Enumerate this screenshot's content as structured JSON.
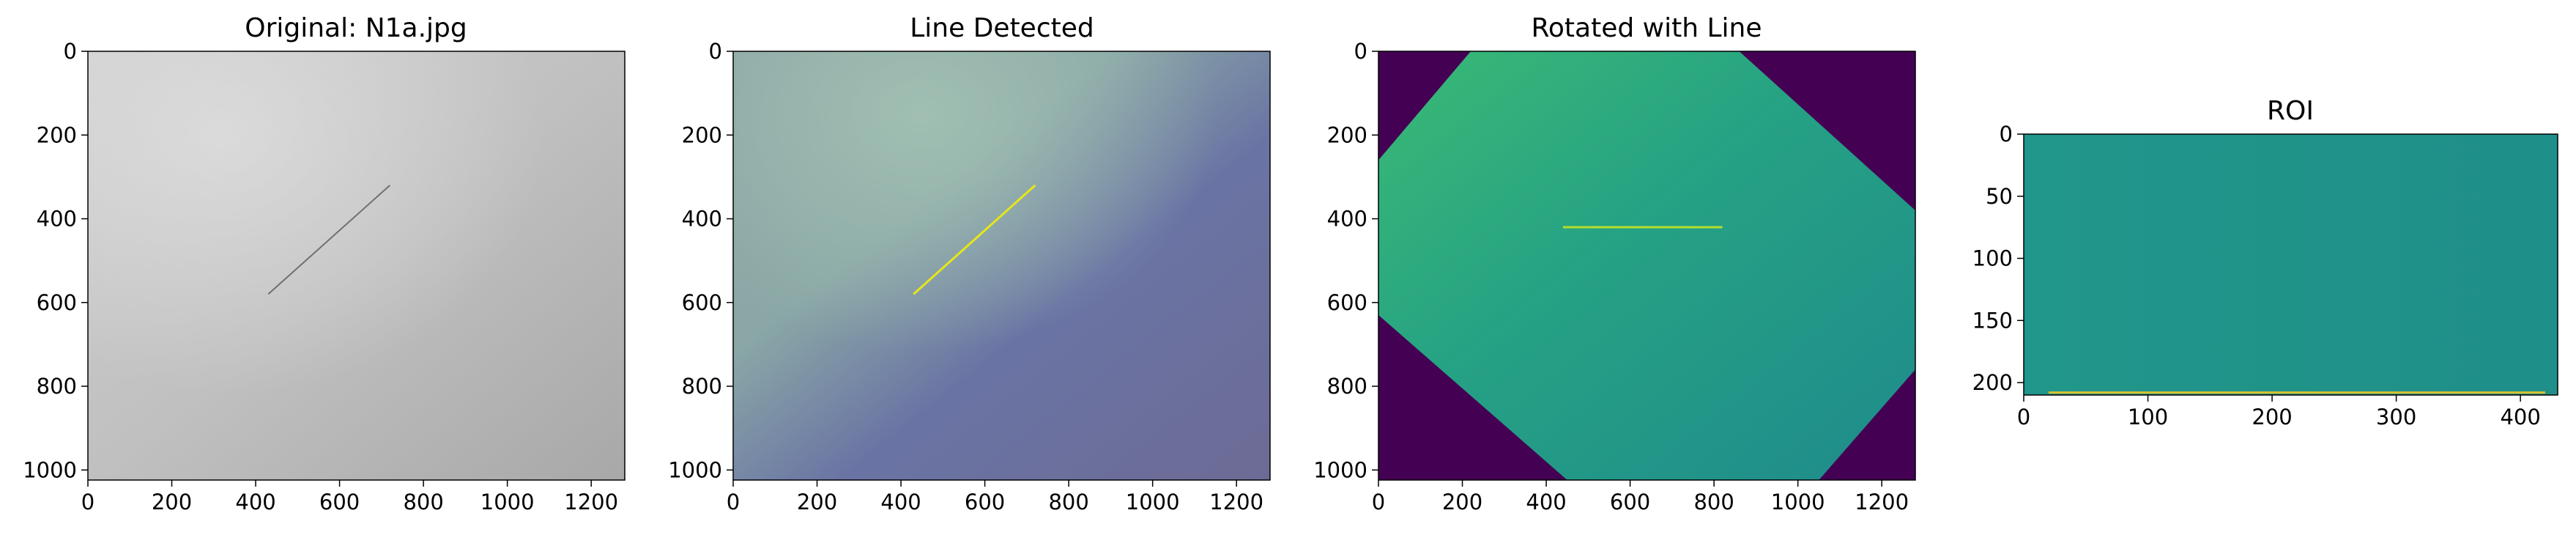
{
  "figure": {
    "panels": [
      {
        "id": "original",
        "title": "Original: N1a.jpg"
      },
      {
        "id": "detected",
        "title": "Line Detected"
      },
      {
        "id": "rotated",
        "title": "Rotated with Line"
      },
      {
        "id": "roi",
        "title": "ROI"
      }
    ]
  },
  "chart_data": [
    {
      "type": "image",
      "title": "Original: N1a.jpg",
      "colormap": "gray",
      "xlim": [
        0,
        1280
      ],
      "ylim": [
        1024,
        0
      ],
      "xticks": [
        0,
        200,
        400,
        600,
        800,
        1000,
        1200
      ],
      "yticks": [
        0,
        200,
        400,
        600,
        800,
        1000
      ],
      "overlay_line": {
        "x": [
          430,
          720
        ],
        "y": [
          580,
          320
        ],
        "color": "#707070"
      }
    },
    {
      "type": "image",
      "title": "Line Detected",
      "colormap": "rgb",
      "xlim": [
        0,
        1280
      ],
      "ylim": [
        1024,
        0
      ],
      "xticks": [
        0,
        200,
        400,
        600,
        800,
        1000,
        1200
      ],
      "yticks": [
        0,
        200,
        400,
        600,
        800,
        1000
      ],
      "overlay_line": {
        "x": [
          430,
          720
        ],
        "y": [
          580,
          320
        ],
        "color": "#e6e619"
      }
    },
    {
      "type": "image",
      "title": "Rotated with Line",
      "colormap": "viridis",
      "xlim": [
        0,
        1280
      ],
      "ylim": [
        1024,
        0
      ],
      "xticks": [
        0,
        200,
        400,
        600,
        800,
        1000,
        1200
      ],
      "yticks": [
        0,
        200,
        400,
        600,
        800,
        1000
      ],
      "valid_region": [
        [
          220,
          0
        ],
        [
          860,
          0
        ],
        [
          1280,
          380
        ],
        [
          1280,
          760
        ],
        [
          1050,
          1024
        ],
        [
          450,
          1024
        ],
        [
          0,
          630
        ],
        [
          0,
          260
        ]
      ],
      "overlay_line": {
        "x": [
          440,
          820
        ],
        "y": [
          420,
          420
        ],
        "color": "#b5de2b"
      }
    },
    {
      "type": "image",
      "title": "ROI",
      "colormap": "viridis",
      "xlim": [
        0,
        430
      ],
      "ylim": [
        210,
        0
      ],
      "xticks": [
        0,
        100,
        200,
        300,
        400
      ],
      "yticks": [
        0,
        50,
        100,
        150,
        200
      ],
      "overlay_line": {
        "x": [
          20,
          420
        ],
        "y": [
          208,
          208
        ],
        "color": "#d8c230"
      }
    }
  ]
}
